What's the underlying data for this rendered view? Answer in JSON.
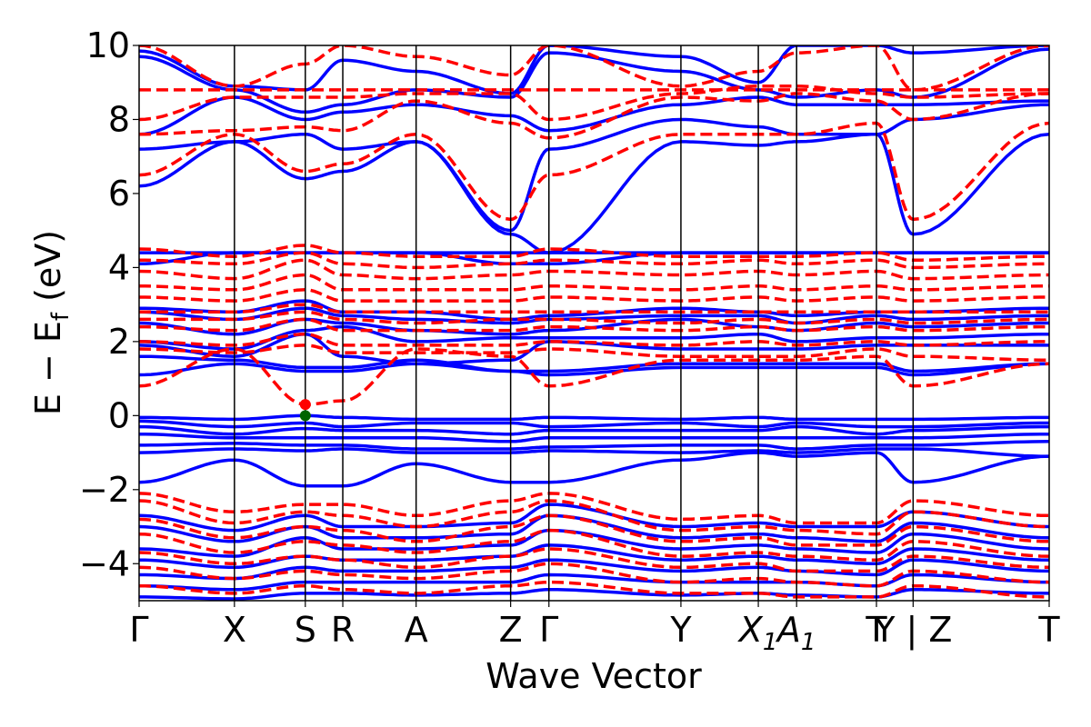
{
  "chart_data": {
    "type": "line",
    "title": "",
    "xlabel": "Wave Vector",
    "ylabel": "E − E",
    "ylabel_sub": "f",
    "ylabel_unit": " (eV)",
    "ylim": [
      -5,
      10
    ],
    "xlim": [
      0,
      11.17
    ],
    "yticks": [
      {
        "value": -4,
        "label": "−4"
      },
      {
        "value": -2,
        "label": "−2"
      },
      {
        "value": 0,
        "label": "0"
      },
      {
        "value": 2,
        "label": "2"
      },
      {
        "value": 4,
        "label": "4"
      },
      {
        "value": 6,
        "label": "6"
      },
      {
        "value": 8,
        "label": "8"
      },
      {
        "value": 10,
        "label": "10"
      }
    ],
    "kpoints": [
      {
        "x": 0.0,
        "label": "Γ",
        "italic": false
      },
      {
        "x": 1.17,
        "label": "X",
        "italic": false
      },
      {
        "x": 2.04,
        "label": "S",
        "italic": false
      },
      {
        "x": 2.5,
        "label": "R",
        "italic": false
      },
      {
        "x": 3.4,
        "label": "A",
        "italic": false
      },
      {
        "x": 4.56,
        "label": "Z",
        "italic": false
      },
      {
        "x": 5.03,
        "label": "Γ",
        "italic": false
      },
      {
        "x": 6.65,
        "label": "Y",
        "italic": false
      },
      {
        "x": 7.6,
        "label": "X",
        "sub": "1",
        "italic": true
      },
      {
        "x": 8.07,
        "label": "A",
        "sub": "1",
        "italic": true
      },
      {
        "x": 9.05,
        "label": "T",
        "italic": false
      },
      {
        "x": 9.5,
        "label": "Y | Z",
        "italic": false
      },
      {
        "x": 11.17,
        "label": "T",
        "italic": false
      }
    ],
    "segments": [
      [
        0,
        1.17
      ],
      [
        1.17,
        2.04
      ],
      [
        2.04,
        2.5
      ],
      [
        2.5,
        3.4
      ],
      [
        3.4,
        4.56
      ],
      [
        4.56,
        5.03
      ],
      [
        5.03,
        6.65
      ],
      [
        6.65,
        7.6
      ],
      [
        7.6,
        8.07
      ],
      [
        8.07,
        9.05
      ],
      [
        9.05,
        9.5
      ],
      [
        9.5,
        11.17
      ]
    ],
    "series": [
      {
        "style": "solid",
        "color": "#0000ff",
        "bands": [
          [
            9.85,
            8.9,
            8.8,
            9.6,
            9.3,
            8.7,
            10.0,
            9.7,
            9.0,
            10.0,
            10.0,
            9.8,
            10.0
          ],
          [
            9.7,
            8.8,
            8.2,
            8.4,
            8.8,
            8.6,
            9.8,
            9.3,
            8.8,
            8.6,
            8.8,
            8.6,
            9.9
          ],
          [
            7.6,
            8.6,
            8.0,
            8.2,
            8.4,
            8.1,
            7.7,
            8.4,
            8.6,
            8.4,
            8.4,
            8.4,
            8.5
          ],
          [
            7.2,
            7.4,
            7.6,
            7.2,
            7.4,
            5.0,
            7.2,
            8.0,
            7.8,
            7.6,
            7.6,
            8.0,
            8.4
          ],
          [
            6.2,
            7.4,
            6.4,
            6.6,
            7.4,
            4.9,
            4.4,
            7.4,
            7.3,
            7.4,
            7.6,
            4.9,
            7.6
          ],
          [
            4.4,
            4.4,
            4.4,
            4.4,
            4.4,
            4.4,
            4.4,
            4.4,
            4.4,
            4.4,
            4.4,
            4.4,
            4.4
          ],
          [
            4.1,
            4.4,
            4.4,
            4.4,
            4.4,
            4.1,
            4.1,
            4.4,
            4.4,
            4.4,
            4.4,
            4.4,
            4.4
          ],
          [
            2.9,
            2.8,
            3.1,
            2.8,
            2.8,
            2.6,
            2.7,
            2.9,
            2.8,
            2.7,
            2.8,
            2.8,
            2.9
          ],
          [
            2.8,
            2.6,
            2.9,
            2.7,
            2.6,
            2.5,
            2.6,
            2.7,
            2.7,
            2.5,
            2.7,
            2.6,
            2.7
          ],
          [
            2.5,
            2.2,
            2.6,
            2.5,
            2.3,
            2.2,
            2.3,
            2.6,
            2.4,
            2.3,
            2.5,
            2.4,
            2.5
          ],
          [
            2.0,
            1.8,
            2.3,
            2.4,
            2.0,
            2.1,
            2.1,
            2.1,
            2.2,
            2.0,
            2.1,
            2.1,
            2.2
          ],
          [
            1.9,
            1.6,
            2.2,
            1.6,
            1.4,
            1.5,
            2.0,
            1.8,
            1.8,
            1.8,
            1.9,
            1.9,
            1.9
          ],
          [
            1.6,
            1.5,
            1.3,
            1.3,
            1.5,
            1.2,
            1.2,
            1.4,
            1.4,
            1.4,
            1.4,
            1.2,
            1.4
          ],
          [
            1.1,
            1.4,
            1.2,
            1.2,
            1.4,
            1.2,
            1.1,
            1.3,
            1.3,
            1.3,
            1.3,
            1.1,
            1.4
          ],
          [
            -0.05,
            -0.1,
            0.0,
            -0.05,
            -0.1,
            -0.1,
            -0.05,
            -0.1,
            -0.05,
            -0.1,
            -0.1,
            -0.1,
            -0.05
          ],
          [
            -0.15,
            -0.3,
            -0.2,
            -0.3,
            -0.2,
            -0.2,
            -0.3,
            -0.2,
            -0.3,
            -0.2,
            -0.3,
            -0.3,
            -0.2
          ],
          [
            -0.3,
            -0.5,
            -0.35,
            -0.4,
            -0.4,
            -0.5,
            -0.4,
            -0.4,
            -0.4,
            -0.3,
            -0.5,
            -0.4,
            -0.3
          ],
          [
            -0.5,
            -0.6,
            -0.6,
            -0.6,
            -0.6,
            -0.7,
            -0.6,
            -0.6,
            -0.6,
            -0.6,
            -0.6,
            -0.6,
            -0.5
          ],
          [
            -0.8,
            -0.75,
            -0.8,
            -0.8,
            -0.9,
            -0.9,
            -0.85,
            -0.8,
            -0.8,
            -0.9,
            -0.8,
            -0.8,
            -0.7
          ],
          [
            -1.0,
            -0.9,
            -0.95,
            -0.9,
            -1.0,
            -1.0,
            -0.95,
            -1.0,
            -0.95,
            -1.0,
            -0.9,
            -0.9,
            -1.1
          ],
          [
            -1.8,
            -1.2,
            -1.9,
            -1.9,
            -1.3,
            -1.8,
            -1.8,
            -1.2,
            -1.0,
            -1.1,
            -1.0,
            -1.8,
            -1.1
          ],
          [
            -2.7,
            -3.1,
            -2.7,
            -3.0,
            -3.0,
            -2.9,
            -2.4,
            -3.0,
            -2.9,
            -3.0,
            -3.0,
            -2.6,
            -3.0
          ],
          [
            -3.0,
            -3.4,
            -3.0,
            -3.3,
            -3.3,
            -3.2,
            -2.7,
            -3.3,
            -3.2,
            -3.3,
            -3.4,
            -2.9,
            -3.3
          ],
          [
            -3.6,
            -3.8,
            -3.3,
            -3.6,
            -3.6,
            -3.5,
            -3.1,
            -3.6,
            -3.5,
            -3.6,
            -3.7,
            -3.2,
            -3.6
          ],
          [
            -3.9,
            -4.1,
            -3.8,
            -3.9,
            -3.9,
            -3.8,
            -3.5,
            -3.9,
            -3.8,
            -3.9,
            -4.0,
            -3.6,
            -3.9
          ],
          [
            -4.3,
            -4.4,
            -4.1,
            -4.2,
            -4.2,
            -4.1,
            -3.9,
            -4.2,
            -4.1,
            -4.2,
            -4.3,
            -3.9,
            -4.2
          ],
          [
            -4.6,
            -4.7,
            -4.5,
            -4.5,
            -4.5,
            -4.5,
            -4.3,
            -4.5,
            -4.5,
            -4.5,
            -4.6,
            -4.3,
            -4.5
          ],
          [
            -4.9,
            -4.95,
            -4.8,
            -4.8,
            -4.85,
            -4.8,
            -4.7,
            -4.85,
            -4.8,
            -4.85,
            -4.9,
            -4.7,
            -4.8
          ]
        ]
      },
      {
        "style": "dashed",
        "color": "#ff0000",
        "bands": [
          [
            10.0,
            8.9,
            9.5,
            10.0,
            9.7,
            9.2,
            10.0,
            8.9,
            9.3,
            9.8,
            10.0,
            8.8,
            10.0
          ],
          [
            8.8,
            8.8,
            8.8,
            8.8,
            8.8,
            8.8,
            8.8,
            8.8,
            8.8,
            8.8,
            8.8,
            8.8,
            8.8
          ],
          [
            8.0,
            8.6,
            8.6,
            8.6,
            8.7,
            8.7,
            8.0,
            8.7,
            8.9,
            8.9,
            8.7,
            8.6,
            8.7
          ],
          [
            7.6,
            7.7,
            7.8,
            7.7,
            8.5,
            7.9,
            7.5,
            8.6,
            8.5,
            8.7,
            8.5,
            8.0,
            8.7
          ],
          [
            6.5,
            7.6,
            6.6,
            6.8,
            7.6,
            5.3,
            6.5,
            7.6,
            7.6,
            7.6,
            7.9,
            5.3,
            7.9
          ],
          [
            4.5,
            4.3,
            4.6,
            4.4,
            4.3,
            4.3,
            4.5,
            4.3,
            4.3,
            4.3,
            4.4,
            4.2,
            4.3
          ],
          [
            4.2,
            4.1,
            4.4,
            4.1,
            4.0,
            4.1,
            4.2,
            4.1,
            4.2,
            4.1,
            4.2,
            4.0,
            4.1
          ],
          [
            3.9,
            3.7,
            4.2,
            3.8,
            3.7,
            3.8,
            3.9,
            3.8,
            3.9,
            3.8,
            3.9,
            3.7,
            3.8
          ],
          [
            3.5,
            3.4,
            3.8,
            3.4,
            3.4,
            3.4,
            3.5,
            3.4,
            3.5,
            3.4,
            3.5,
            3.4,
            3.5
          ],
          [
            3.2,
            3.1,
            3.4,
            3.1,
            3.1,
            3.1,
            3.2,
            3.1,
            3.2,
            3.1,
            3.2,
            3.1,
            3.2
          ],
          [
            2.8,
            2.8,
            3.0,
            2.8,
            2.8,
            2.8,
            2.8,
            2.8,
            2.8,
            2.8,
            2.8,
            2.8,
            2.8
          ],
          [
            2.6,
            2.6,
            2.8,
            2.6,
            2.5,
            2.6,
            2.6,
            2.5,
            2.6,
            2.5,
            2.6,
            2.5,
            2.6
          ],
          [
            2.4,
            2.3,
            2.6,
            2.3,
            2.3,
            2.3,
            2.4,
            2.3,
            2.4,
            2.3,
            2.4,
            2.3,
            2.4
          ],
          [
            2.0,
            1.9,
            2.2,
            1.9,
            1.9,
            1.9,
            2.0,
            1.9,
            2.0,
            1.9,
            2.0,
            1.9,
            2.0
          ],
          [
            1.8,
            1.7,
            1.9,
            1.7,
            1.7,
            1.7,
            1.8,
            1.6,
            1.6,
            1.6,
            1.8,
            1.6,
            1.5
          ],
          [
            0.8,
            1.8,
            0.3,
            0.4,
            1.8,
            1.6,
            0.8,
            1.5,
            1.5,
            1.5,
            1.6,
            0.8,
            1.4
          ],
          [
            -2.1,
            -2.6,
            -2.4,
            -2.4,
            -2.7,
            -2.3,
            -2.1,
            -2.8,
            -2.7,
            -2.9,
            -2.9,
            -2.3,
            -2.7
          ],
          [
            -2.3,
            -2.9,
            -2.6,
            -2.7,
            -3.0,
            -2.6,
            -2.3,
            -3.1,
            -3.0,
            -3.1,
            -3.2,
            -2.6,
            -3.0
          ],
          [
            -2.8,
            -3.3,
            -3.0,
            -3.1,
            -3.4,
            -3.0,
            -2.7,
            -3.4,
            -3.3,
            -3.5,
            -3.5,
            -3.0,
            -3.4
          ],
          [
            -3.2,
            -3.7,
            -3.4,
            -3.5,
            -3.7,
            -3.4,
            -3.1,
            -3.8,
            -3.7,
            -3.8,
            -3.9,
            -3.4,
            -3.8
          ],
          [
            -3.7,
            -4.0,
            -3.8,
            -3.9,
            -4.1,
            -3.8,
            -3.6,
            -4.1,
            -4.0,
            -4.2,
            -4.2,
            -3.8,
            -4.1
          ],
          [
            -4.1,
            -4.4,
            -4.2,
            -4.3,
            -4.4,
            -4.2,
            -4.0,
            -4.5,
            -4.4,
            -4.5,
            -4.6,
            -4.2,
            -4.5
          ],
          [
            -4.6,
            -4.8,
            -4.6,
            -4.7,
            -4.8,
            -4.6,
            -4.5,
            -4.8,
            -4.8,
            -4.9,
            -4.9,
            -4.6,
            -4.9
          ]
        ]
      }
    ],
    "markers": [
      {
        "x": 2.04,
        "y": 0.3,
        "color": "#ff0000"
      },
      {
        "x": 2.04,
        "y": 0.0,
        "color": "#006400"
      }
    ]
  }
}
